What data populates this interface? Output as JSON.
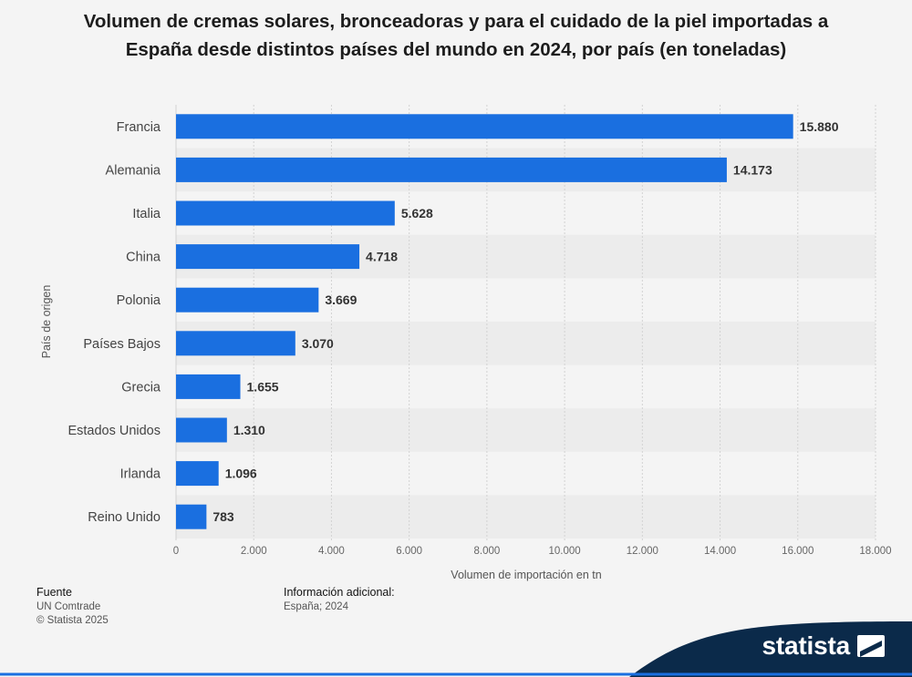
{
  "chart_data": {
    "type": "bar",
    "orientation": "horizontal",
    "title": "Volumen de cremas solares, bronceadoras y para el cuidado de la piel importadas a España desde distintos países del mundo en 2024, por país (en toneladas)",
    "categories": [
      "Francia",
      "Alemania",
      "Italia",
      "China",
      "Polonia",
      "Países Bajos",
      "Grecia",
      "Estados Unidos",
      "Irlanda",
      "Reino Unido"
    ],
    "values": [
      15880,
      14173,
      5628,
      4718,
      3669,
      3070,
      1655,
      1310,
      1096,
      783
    ],
    "value_labels": [
      "15.880",
      "14.173",
      "5.628",
      "4.718",
      "3.669",
      "3.070",
      "1.655",
      "1.310",
      "1.096",
      "783"
    ],
    "xlabel": "Volumen de importación en tn",
    "ylabel": "País de origen",
    "xlim": [
      0,
      18000
    ],
    "xticks": [
      0,
      2000,
      4000,
      6000,
      8000,
      10000,
      12000,
      14000,
      16000,
      18000
    ],
    "xtick_labels": [
      "0",
      "2.000",
      "4.000",
      "6.000",
      "8.000",
      "10.000",
      "12.000",
      "14.000",
      "16.000",
      "18.000"
    ],
    "grid": true,
    "bar_color": "#1a6fe0"
  },
  "footer": {
    "source_head": "Fuente",
    "source_lines": [
      "UN Comtrade",
      "© Statista 2025"
    ],
    "info_head": "Información adicional:",
    "info_text": "España; 2024"
  },
  "brand": {
    "name": "statista",
    "color": "#0b2a4a",
    "accent": "#1a6fe0"
  }
}
